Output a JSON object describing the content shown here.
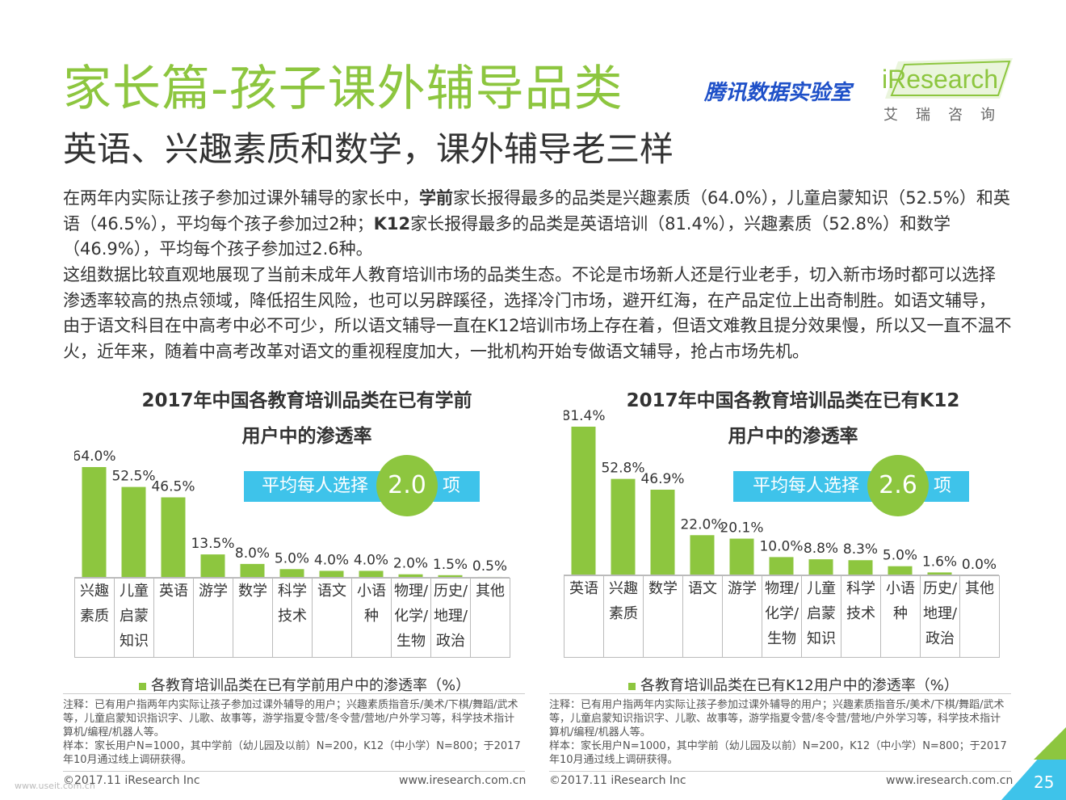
{
  "header": {
    "title": "家长篇-孩子课外辅导品类",
    "subtitle": "英语、兴趣素质和数学，课外辅导老三样",
    "tencent_lab": "腾讯数据实验室",
    "logo_word": "iResearch",
    "logo_sub": "艾瑞咨询"
  },
  "body": {
    "p1_a": "在两年内实际让孩子参加过课外辅导的家长中，",
    "p1_b": "学前",
    "p1_c": "家长报得最多的品类是兴趣素质（64.0%），儿童启蒙知识（52.5%）和英语（46.5%），平均每个孩子参加过2种；",
    "p1_d": "K12",
    "p1_e": "家长报得最多的品类是英语培训（81.4%），兴趣素质（52.8%）和数学（46.9%），平均每个孩子参加过2.6种。",
    "p2": "这组数据比较直观地展现了当前未成年人教育培训市场的品类生态。不论是市场新人还是行业老手，切入新市场时都可以选择渗透率较高的热点领域，降低招生风险，也可以另辟蹊径，选择冷门市场，避开红海，在产品定位上出奇制胜。如语文辅导，由于语文科目在中高考中必不可少，所以语文辅导一直在K12培训市场上存在着，但语文难教且提分效果慢，所以又一直不温不火，近年来，随着中高考改革对语文的重视程度加大，一批机构开始专做语文辅导，抢占市场先机。"
  },
  "chart_data": [
    {
      "type": "bar",
      "title_line1": "2017年中国各教育培训品类在已有学前",
      "title_line2": "用户中的渗透率",
      "categories": [
        "兴趣素质",
        "儿童启蒙知识",
        "英语",
        "游学",
        "数学",
        "科学技术",
        "语文",
        "小语种",
        "物理/化学/生物",
        "历史/地理/政治",
        "其他"
      ],
      "category_lines": [
        [
          "兴趣",
          "素质"
        ],
        [
          "儿童",
          "启蒙",
          "知识"
        ],
        [
          "英语"
        ],
        [
          "游学"
        ],
        [
          "数学"
        ],
        [
          "科学",
          "技术"
        ],
        [
          "语文"
        ],
        [
          "小语",
          "种"
        ],
        [
          "物理/",
          "化学/",
          "生物"
        ],
        [
          "历史/",
          "地理/",
          "政治"
        ],
        [
          "其他"
        ]
      ],
      "values": [
        64.0,
        52.5,
        46.5,
        13.5,
        8.0,
        5.0,
        4.0,
        4.0,
        2.0,
        1.5,
        0.5
      ],
      "value_labels": [
        "64.0%",
        "52.5%",
        "46.5%",
        "13.5%",
        "8.0%",
        "5.0%",
        "4.0%",
        "4.0%",
        "2.0%",
        "1.5%",
        "0.5%"
      ],
      "legend": "各教育培训品类在已有学前用户中的渗透率（%）",
      "badge_prefix": "平均每人选择",
      "badge_value": "2.0",
      "badge_suffix": "项",
      "bar_color": "#8dc63f"
    },
    {
      "type": "bar",
      "title_line1": "2017年中国各教育培训品类在已有K12",
      "title_line2": "用户中的渗透率",
      "categories": [
        "英语",
        "兴趣素质",
        "数学",
        "语文",
        "游学",
        "物理/化学/生物",
        "儿童启蒙知识",
        "科学技术",
        "小语种",
        "历史/地理/政治",
        "其他"
      ],
      "category_lines": [
        [
          "英语"
        ],
        [
          "兴趣",
          "素质"
        ],
        [
          "数学"
        ],
        [
          "语文"
        ],
        [
          "游学"
        ],
        [
          "物理/",
          "化学/",
          "生物"
        ],
        [
          "儿童",
          "启蒙",
          "知识"
        ],
        [
          "科学",
          "技术"
        ],
        [
          "小语",
          "种"
        ],
        [
          "历史/",
          "地理/",
          "政治"
        ],
        [
          "其他"
        ]
      ],
      "values": [
        81.4,
        52.8,
        46.9,
        22.0,
        20.1,
        10.0,
        8.8,
        8.3,
        5.0,
        1.6,
        0.0
      ],
      "value_labels": [
        "81.4%",
        "52.8%",
        "46.9%",
        "22.0%",
        "20.1%",
        "10.0%",
        "8.8%",
        "8.3%",
        "5.0%",
        "1.6%",
        "0.0%"
      ],
      "legend": "各教育培训品类在已有K12用户中的渗透率（%）",
      "badge_prefix": "平均每人选择",
      "badge_value": "2.6",
      "badge_suffix": "项",
      "bar_color": "#8dc63f"
    }
  ],
  "notes": {
    "note_text": "注释：已有用户指两年内实际让孩子参加过课外辅导的用户；兴趣素质指音乐/美术/下棋/舞蹈/武术等，儿童启蒙知识指识字、儿歌、故事等，游学指夏令营/冬令营/营地/户外学习等，科学技术指计算机/编程/机器人等。",
    "sample_text": "样本：家长用户N=1000，其中学前（幼儿园及以前）N=200，K12（中小学）N=800；于2017年10月通过线上调研获得。"
  },
  "footer": {
    "copyright": "©2017.11 iResearch Inc",
    "url": "www.iresearch.com.cn",
    "page_number": "25",
    "watermark": "www.useit.com.cn"
  },
  "colors": {
    "accent_green": "#8dc63f",
    "badge_blue": "#3ec3ea",
    "tencent_blue": "#1e50c8"
  }
}
